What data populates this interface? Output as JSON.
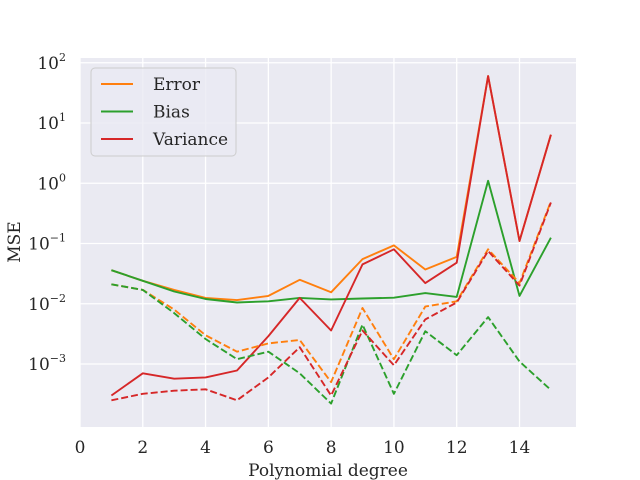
{
  "chart_data": {
    "type": "line",
    "title": "",
    "xlabel": "Polynomial degree",
    "ylabel": "MSE",
    "yscale": "log",
    "xlim": [
      0,
      15.8
    ],
    "ylim": [
      9e-05,
      120
    ],
    "grid": true,
    "legend_position": "top-left",
    "x_ticks": [
      0,
      2,
      4,
      6,
      8,
      10,
      12,
      14
    ],
    "x_tick_labels": [
      "0",
      "2",
      "4",
      "6",
      "8",
      "10",
      "12",
      "14"
    ],
    "y_ticks": [
      0.001,
      0.01,
      0.1,
      1,
      10,
      100
    ],
    "y_tick_labels": [
      {
        "base": "10",
        "exp": "−3"
      },
      {
        "base": "10",
        "exp": "−2"
      },
      {
        "base": "10",
        "exp": "−1"
      },
      {
        "base": "10",
        "exp": "0"
      },
      {
        "base": "10",
        "exp": "1"
      },
      {
        "base": "10",
        "exp": "2"
      }
    ],
    "x": [
      1,
      2,
      3,
      4,
      5,
      6,
      7,
      8,
      9,
      10,
      11,
      12,
      13,
      14,
      15
    ],
    "series": [
      {
        "name": "Error",
        "color": "#ff7f0e",
        "style": "solid",
        "values": [
          0.036,
          0.024,
          0.017,
          0.0125,
          0.0115,
          0.0135,
          0.025,
          0.0155,
          0.055,
          0.093,
          0.037,
          0.06,
          60,
          0.11,
          6.4
        ]
      },
      {
        "name": "Bias",
        "color": "#2ca02c",
        "style": "solid",
        "values": [
          0.036,
          0.024,
          0.016,
          0.012,
          0.0105,
          0.011,
          0.0125,
          0.0118,
          0.0122,
          0.0126,
          0.015,
          0.013,
          1.1,
          0.0135,
          0.125
        ]
      },
      {
        "name": "Variance",
        "color": "#d62728",
        "style": "solid",
        "values": [
          0.0003,
          0.0007,
          0.00057,
          0.0006,
          0.00078,
          0.0029,
          0.0125,
          0.0036,
          0.045,
          0.08,
          0.022,
          0.048,
          60,
          0.11,
          6.4
        ]
      },
      {
        "name": "",
        "color": "#ff7f0e",
        "style": "dashed",
        "values": [
          0.021,
          0.017,
          0.008,
          0.003,
          0.0016,
          0.0022,
          0.0025,
          0.0005,
          0.0085,
          0.0012,
          0.009,
          0.011,
          0.08,
          0.022,
          0.5
        ]
      },
      {
        "name": "",
        "color": "#2ca02c",
        "style": "dashed",
        "values": [
          0.021,
          0.017,
          0.007,
          0.0026,
          0.0012,
          0.0016,
          0.0007,
          0.00022,
          0.0045,
          0.00032,
          0.0035,
          0.0014,
          0.006,
          0.0011,
          0.00037
        ]
      },
      {
        "name": "",
        "color": "#d62728",
        "style": "dashed",
        "values": [
          0.00025,
          0.00032,
          0.00036,
          0.00038,
          0.00025,
          0.0006,
          0.0019,
          0.0003,
          0.0036,
          0.00095,
          0.0055,
          0.0105,
          0.075,
          0.02,
          0.48
        ]
      }
    ]
  }
}
